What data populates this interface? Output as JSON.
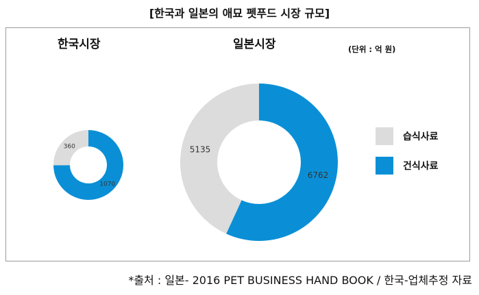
{
  "header": {
    "title": "[한국과 일본의 애묘 펫푸드 시장 규모]"
  },
  "unit_note": "(단위 : 억 원)",
  "colors": {
    "wet": "#dcdcdc",
    "dry": "#0a8fd6"
  },
  "chart_data": [
    {
      "type": "pie",
      "title": "한국시장",
      "labels": [
        "습식사료",
        "건식사료"
      ],
      "values": [
        360,
        1070
      ]
    },
    {
      "type": "pie",
      "title": "일본시장",
      "labels": [
        "습식사료",
        "건식사료"
      ],
      "values": [
        5135,
        6762
      ]
    }
  ],
  "legend": [
    {
      "label": "습식사료",
      "color": "#dcdcdc"
    },
    {
      "label": "건식사료",
      "color": "#0a8fd6"
    }
  ],
  "source": "*출처 : 일본- 2016 PET BUSINESS HAND BOOK / 한국-업체추정 자료"
}
